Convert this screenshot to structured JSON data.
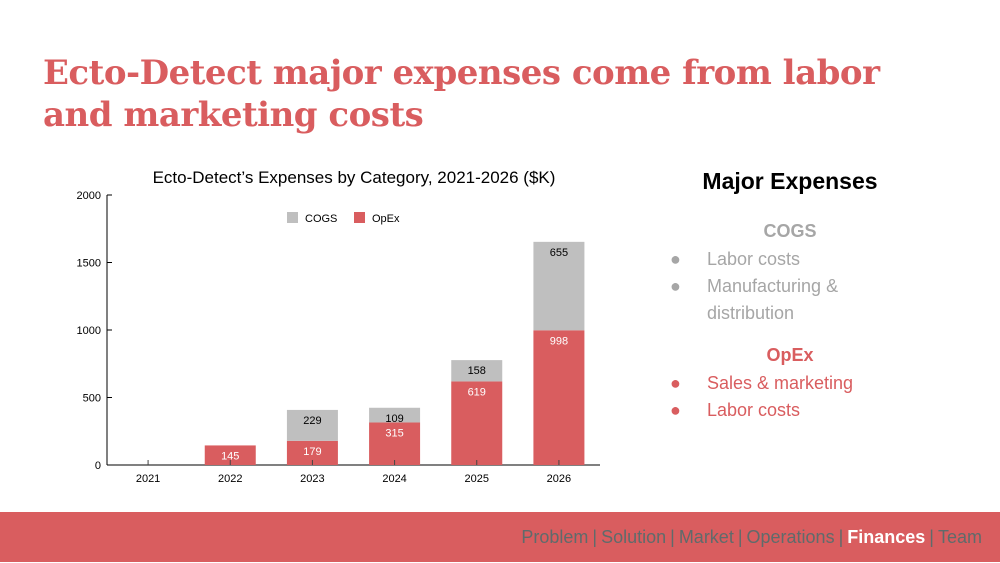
{
  "slide": {
    "title": "Ecto-Detect major expenses come from labor and marketing costs"
  },
  "chart_data": {
    "type": "bar",
    "stacked": true,
    "title": "Ecto-Detect’s Expenses by Category, 2021-2026 ($K)",
    "categories": [
      "2021",
      "2022",
      "2023",
      "2024",
      "2025",
      "2026"
    ],
    "series": [
      {
        "name": "OpEx",
        "color": "#d95d5f",
        "values": [
          0,
          145,
          179,
          315,
          619,
          998
        ]
      },
      {
        "name": "COGS",
        "color": "#bfbfbf",
        "values": [
          0,
          0,
          229,
          109,
          158,
          655
        ]
      }
    ],
    "legend_order": [
      "COGS",
      "OpEx"
    ],
    "legend": "top-center",
    "ylim": [
      0,
      2000
    ],
    "yticks": [
      0,
      500,
      1000,
      1500,
      2000
    ],
    "xlabel": "",
    "ylabel": "",
    "grid": false
  },
  "sidebar": {
    "heading": "Major Expenses",
    "sections": [
      {
        "title": "COGS",
        "items": [
          "Labor costs",
          "Manufacturing & distribution"
        ]
      },
      {
        "title": "OpEx",
        "items": [
          "Sales & marketing",
          "Labor costs"
        ]
      }
    ],
    "bullet": "●"
  },
  "footer": {
    "nav": [
      "Problem",
      "Solution",
      "Market",
      "Operations",
      "Finances",
      "Team"
    ],
    "active": "Finances",
    "separator": "|"
  }
}
